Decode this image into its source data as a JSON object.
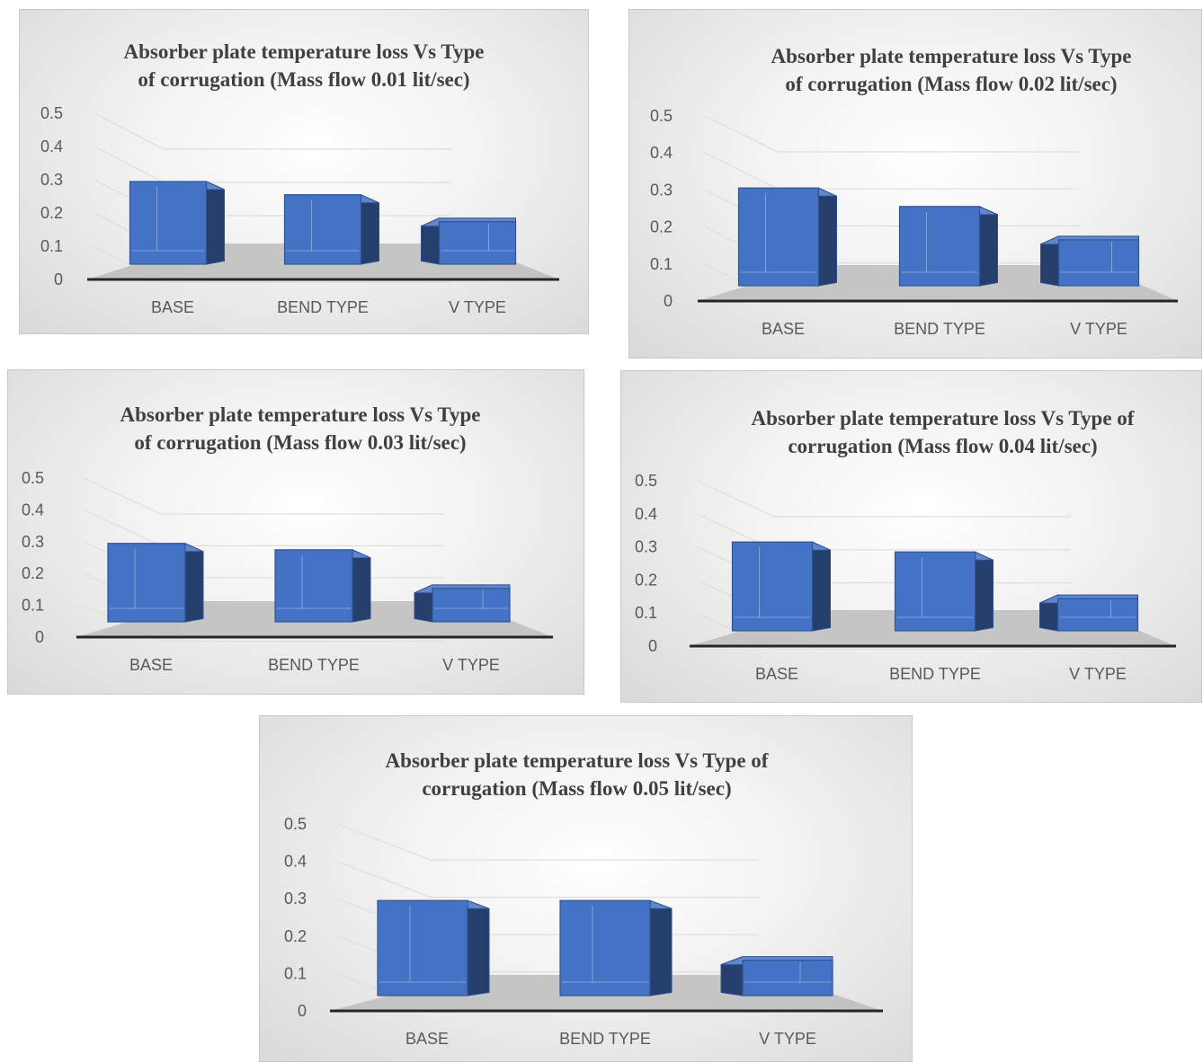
{
  "chart_data": [
    {
      "type": "bar",
      "title": "Absorber plate temperature loss Vs Type of corrugation (Mass flow 0.01 lit/sec)",
      "categories": [
        "BASE",
        "BEND TYPE",
        "V TYPE"
      ],
      "values": [
        0.3,
        0.26,
        0.19
      ],
      "yticks": [
        "0",
        "0.1",
        "0.2",
        "0.3",
        "0.4",
        "0.5"
      ],
      "ylim": [
        0,
        0.5
      ],
      "style": "3d-column",
      "bar_color": "#4472C4"
    },
    {
      "type": "bar",
      "title": "Absorber plate temperature loss Vs Type of corrugation (Mass flow 0.02 lit/sec)",
      "categories": [
        "BASE",
        "BEND TYPE",
        "V TYPE"
      ],
      "values": [
        0.31,
        0.26,
        0.18
      ],
      "yticks": [
        "0",
        "0.1",
        "0.2",
        "0.3",
        "0.4",
        "0.5"
      ],
      "ylim": [
        0,
        0.5
      ],
      "style": "3d-column",
      "bar_color": "#4472C4"
    },
    {
      "type": "bar",
      "title": "Absorber plate temperature loss Vs Type of corrugation (Mass flow 0.03 lit/sec)",
      "categories": [
        "BASE",
        "BEND TYPE",
        "V TYPE"
      ],
      "values": [
        0.3,
        0.28,
        0.17
      ],
      "yticks": [
        "0",
        "0.1",
        "0.2",
        "0.3",
        "0.4",
        "0.5"
      ],
      "ylim": [
        0,
        0.5
      ],
      "style": "3d-column",
      "bar_color": "#4472C4"
    },
    {
      "type": "bar",
      "title": "Absorber plate temperature loss Vs Type of corrugation (Mass flow 0.04 lit/sec)",
      "categories": [
        "BASE",
        "BEND TYPE",
        "V TYPE"
      ],
      "values": [
        0.32,
        0.29,
        0.16
      ],
      "yticks": [
        "0",
        "0.1",
        "0.2",
        "0.3",
        "0.4",
        "0.5"
      ],
      "ylim": [
        0,
        0.5
      ],
      "style": "3d-column",
      "bar_color": "#4472C4"
    },
    {
      "type": "bar",
      "title": "Absorber plate temperature loss Vs Type of corrugation (Mass flow 0.05 lit/sec)",
      "categories": [
        "BASE",
        "BEND TYPE",
        "V TYPE"
      ],
      "values": [
        0.3,
        0.3,
        0.15
      ],
      "yticks": [
        "0",
        "0.1",
        "0.2",
        "0.3",
        "0.4",
        "0.5"
      ],
      "ylim": [
        0,
        0.5
      ],
      "style": "3d-column",
      "bar_color": "#4472C4"
    }
  ]
}
